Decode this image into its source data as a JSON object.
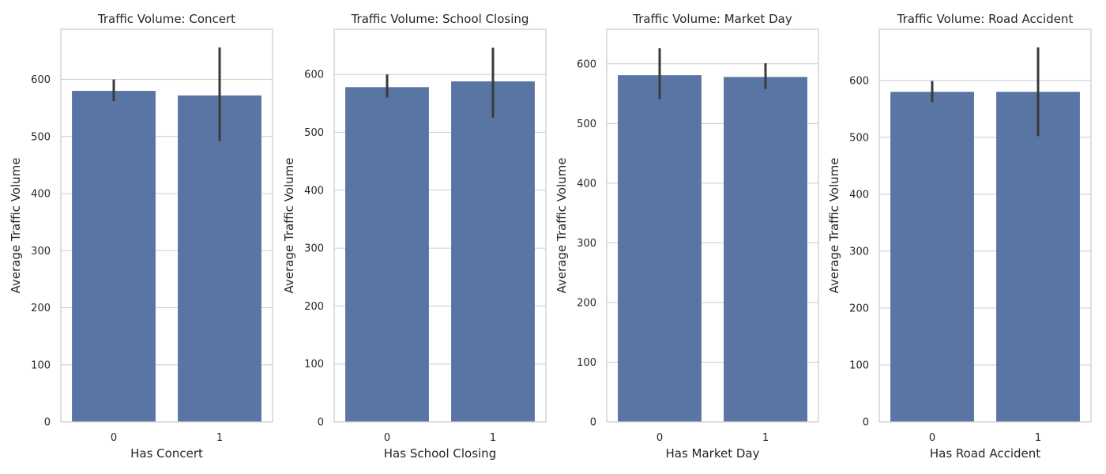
{
  "chart_data": [
    {
      "type": "bar",
      "title": "Traffic Volume: Concert",
      "xlabel": "Has Concert",
      "ylabel": "Average Traffic Volume",
      "categories": [
        "0",
        "1"
      ],
      "values": [
        580,
        572
      ],
      "error_low": [
        562,
        492
      ],
      "error_high": [
        600,
        656
      ],
      "ylim": [
        0,
        688
      ],
      "yticks": [
        0,
        100,
        200,
        300,
        400,
        500,
        600
      ],
      "grid": "horizontal",
      "color": "#5975a4"
    },
    {
      "type": "bar",
      "title": "Traffic Volume: School Closing",
      "xlabel": "Has School Closing",
      "ylabel": "Average Traffic Volume",
      "categories": [
        "0",
        "1"
      ],
      "values": [
        578,
        588
      ],
      "error_low": [
        560,
        525
      ],
      "error_high": [
        600,
        646
      ],
      "ylim": [
        0,
        678
      ],
      "yticks": [
        0,
        100,
        200,
        300,
        400,
        500,
        600
      ],
      "grid": "horizontal",
      "color": "#5975a4"
    },
    {
      "type": "bar",
      "title": "Traffic Volume: Market Day",
      "xlabel": "Has Market Day",
      "ylabel": "Average Traffic Volume",
      "categories": [
        "0",
        "1"
      ],
      "values": [
        581,
        578
      ],
      "error_low": [
        541,
        558
      ],
      "error_high": [
        626,
        601
      ],
      "ylim": [
        0,
        658
      ],
      "yticks": [
        0,
        100,
        200,
        300,
        400,
        500,
        600
      ],
      "grid": "horizontal",
      "color": "#5975a4"
    },
    {
      "type": "bar",
      "title": "Traffic Volume: Road Accident",
      "xlabel": "Has Road Accident",
      "ylabel": "Average Traffic Volume",
      "categories": [
        "0",
        "1"
      ],
      "values": [
        580,
        580
      ],
      "error_low": [
        562,
        502
      ],
      "error_high": [
        599,
        658
      ],
      "ylim": [
        0,
        690
      ],
      "yticks": [
        0,
        100,
        200,
        300,
        400,
        500,
        600
      ],
      "grid": "horizontal",
      "color": "#5975a4"
    }
  ]
}
